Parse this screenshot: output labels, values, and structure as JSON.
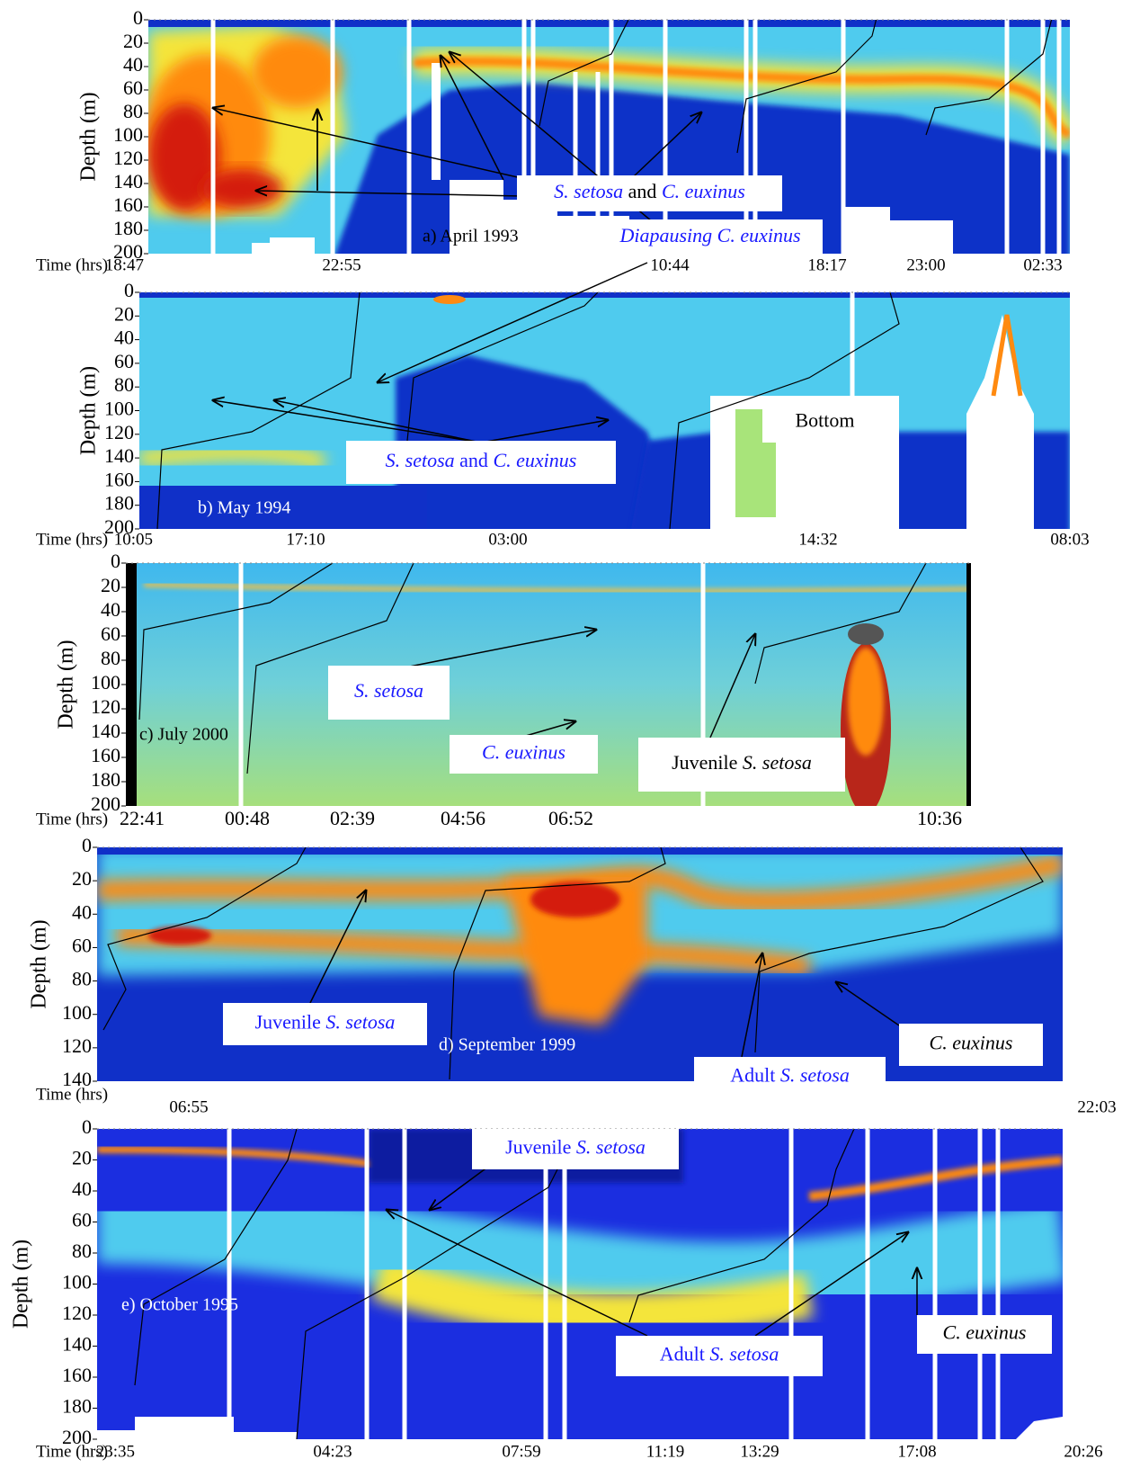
{
  "panels": [
    {
      "label": "a) April 1993",
      "ylabel": "Depth (m)",
      "ylim": [
        0,
        200
      ],
      "yticks": [
        0,
        20,
        40,
        60,
        80,
        100,
        120,
        140,
        160,
        180,
        200
      ],
      "time_prefix": "Time (hrs)",
      "times": [
        "18:47",
        "22:55",
        "10:44",
        "18:17",
        "23:00",
        "02:33"
      ],
      "annotations": [
        [
          "S. setosa",
          " and ",
          "C. euxinus"
        ],
        [
          "Diapausing ",
          "C. euxinus"
        ]
      ]
    },
    {
      "label": "b) May 1994",
      "ylabel": "Depth (m)",
      "ylim": [
        0,
        200
      ],
      "yticks": [
        0,
        20,
        40,
        60,
        80,
        100,
        120,
        140,
        160,
        180,
        200
      ],
      "time_prefix": "Time (hrs)",
      "times": [
        "10:05",
        "17:10",
        "03:00",
        "14:32",
        "08:03"
      ],
      "annotations": [
        [
          "S. setosa",
          " and ",
          "C. euxinus"
        ],
        [
          "Bottom"
        ]
      ]
    },
    {
      "label": "c) July 2000",
      "ylabel": "Depth (m)",
      "ylim": [
        0,
        200
      ],
      "yticks": [
        0,
        20,
        40,
        60,
        80,
        100,
        120,
        140,
        160,
        180,
        200
      ],
      "time_prefix": "Time (hrs)",
      "times": [
        "22:41",
        "00:48",
        "02:39",
        "04:56",
        "06:52",
        "10:36"
      ],
      "annotations": [
        [
          "S. setosa"
        ],
        [
          "C. euxinus"
        ],
        [
          "Juvenile ",
          "S. setosa"
        ]
      ]
    },
    {
      "label": "d) September 1999",
      "ylabel": "Depth (m)",
      "ylim": [
        0,
        140
      ],
      "yticks": [
        0,
        20,
        40,
        60,
        80,
        100,
        120,
        140
      ],
      "time_prefix": "Time (hrs)",
      "times": [
        "06:55",
        "22:03"
      ],
      "annotations": [
        [
          "Juvenile ",
          "S. setosa"
        ],
        [
          "C. euxinus"
        ],
        [
          "Adult ",
          "S. setosa"
        ]
      ]
    },
    {
      "label": "e) October 1995",
      "ylabel": "Depth (m)",
      "ylim": [
        0,
        200
      ],
      "yticks": [
        0,
        20,
        40,
        60,
        80,
        100,
        120,
        140,
        160,
        180,
        200
      ],
      "time_prefix": "Time (hrs)",
      "times": [
        "23:35",
        "04:23",
        "07:59",
        "11:19",
        "13:29",
        "17:08",
        "20:26"
      ],
      "annotations": [
        [
          "Juvenile ",
          "S. setosa"
        ],
        [
          "Adult ",
          "S. setosa"
        ],
        [
          "C. euxinus"
        ]
      ]
    }
  ]
}
